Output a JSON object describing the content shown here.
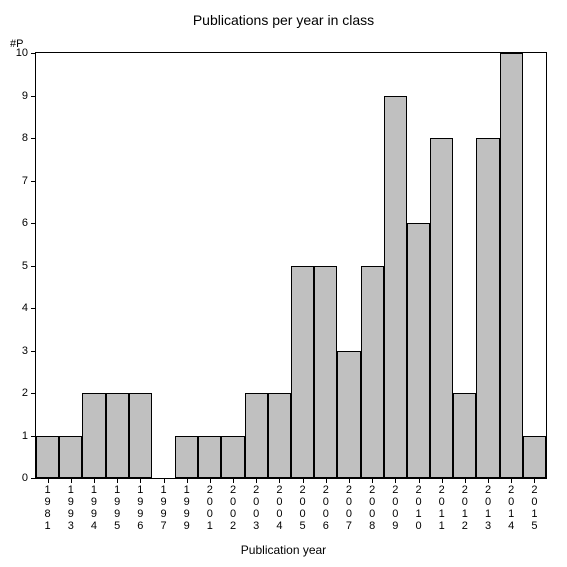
{
  "chart": {
    "type": "bar",
    "title": "Publications per year in class",
    "title_fontsize": 14,
    "y_axis_label": "#P",
    "x_axis_label": "Publication year",
    "label_fontsize": 12,
    "tick_fontsize": 11,
    "background_color": "#ffffff",
    "bar_color": "#c0c0c0",
    "bar_border_color": "#000000",
    "axis_color": "#000000",
    "ylim": [
      0,
      10
    ],
    "ytick_step": 1,
    "bar_width": 1.0,
    "categories": [
      "1981",
      "1993",
      "1994",
      "1995",
      "1996",
      "1997",
      "1999",
      "2001",
      "2002",
      "2003",
      "2004",
      "2005",
      "2006",
      "2007",
      "2008",
      "2009",
      "2010",
      "2011",
      "2012",
      "2013",
      "2014",
      "2015"
    ],
    "values": [
      1,
      1,
      2,
      2,
      2,
      0,
      1,
      1,
      1,
      2,
      2,
      5,
      5,
      3,
      5,
      9,
      6,
      8,
      2,
      8,
      10,
      1
    ]
  }
}
